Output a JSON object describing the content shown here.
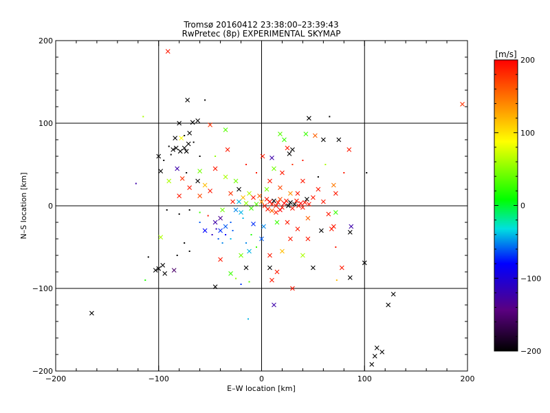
{
  "chart_data": {
    "type": "scatter",
    "title": "Tromsø 20160412 23:38:00–23:39:43",
    "subtitle": "RwPretec (8p) EXPERIMENTAL SKYMAP",
    "xlabel": "E–W location [km]",
    "ylabel": "N–S location [km]",
    "xlim": [
      -200,
      200
    ],
    "ylim": [
      -200,
      200
    ],
    "xticks": [
      "−200",
      "−100",
      "0",
      "100",
      "200"
    ],
    "yticks": [
      "200",
      "100",
      "0",
      "−100",
      "−200"
    ],
    "grid_lines_x": [
      -100,
      0,
      100
    ],
    "grid_lines_y": [
      -100,
      0,
      100
    ],
    "colorbar": {
      "label": "[m/s]",
      "range": [
        -200,
        200
      ],
      "ticks": [
        "200",
        "100",
        "0",
        "−100",
        "−200"
      ]
    },
    "marker_key": [
      "x = large marker",
      "dot = small marker"
    ],
    "points": [
      {
        "x": -91,
        "y": 187,
        "v": 190,
        "m": "x"
      },
      {
        "x": 195,
        "y": 123,
        "v": 180,
        "m": "x"
      },
      {
        "x": -72,
        "y": 128,
        "v": -200,
        "m": "x"
      },
      {
        "x": -62,
        "y": 103,
        "v": -200,
        "m": "x"
      },
      {
        "x": -67,
        "y": 101,
        "v": -200,
        "m": "x"
      },
      {
        "x": -50,
        "y": 98,
        "v": 180,
        "m": "x"
      },
      {
        "x": -115,
        "y": 108,
        "v": 60,
        "m": "d"
      },
      {
        "x": -80,
        "y": 100,
        "v": -200,
        "m": "x"
      },
      {
        "x": -78,
        "y": 82,
        "v": 90,
        "m": "x"
      },
      {
        "x": -75,
        "y": 85,
        "v": -200,
        "m": "d"
      },
      {
        "x": -70,
        "y": 88,
        "v": -200,
        "m": "x"
      },
      {
        "x": -83,
        "y": 70,
        "v": -200,
        "m": "x"
      },
      {
        "x": -79,
        "y": 66,
        "v": -200,
        "m": "x"
      },
      {
        "x": -75,
        "y": 70,
        "v": -200,
        "m": "x"
      },
      {
        "x": -73,
        "y": 66,
        "v": -200,
        "m": "x"
      },
      {
        "x": -71,
        "y": 75,
        "v": -200,
        "m": "x"
      },
      {
        "x": -86,
        "y": 68,
        "v": -200,
        "m": "x"
      },
      {
        "x": -88,
        "y": 62,
        "v": -200,
        "m": "d"
      },
      {
        "x": -84,
        "y": 82,
        "v": -200,
        "m": "x"
      },
      {
        "x": -90,
        "y": 72,
        "v": -200,
        "m": "d"
      },
      {
        "x": -66,
        "y": 77,
        "v": -200,
        "m": "d"
      },
      {
        "x": -100,
        "y": 60,
        "v": -200,
        "m": "x"
      },
      {
        "x": -98,
        "y": 42,
        "v": -200,
        "m": "x"
      },
      {
        "x": -95,
        "y": 55,
        "v": -200,
        "m": "d"
      },
      {
        "x": -82,
        "y": 45,
        "v": -120,
        "m": "x"
      },
      {
        "x": -73,
        "y": 40,
        "v": -200,
        "m": "d"
      },
      {
        "x": -60,
        "y": 42,
        "v": 40,
        "m": "x"
      },
      {
        "x": -62,
        "y": 30,
        "v": -200,
        "m": "x"
      },
      {
        "x": -55,
        "y": 25,
        "v": 120,
        "m": "x"
      },
      {
        "x": -90,
        "y": 30,
        "v": 60,
        "m": "x"
      },
      {
        "x": -77,
        "y": 33,
        "v": 180,
        "m": "x"
      },
      {
        "x": -70,
        "y": 22,
        "v": 190,
        "m": "x"
      },
      {
        "x": -80,
        "y": 12,
        "v": 190,
        "m": "x"
      },
      {
        "x": -60,
        "y": 12,
        "v": 170,
        "m": "x"
      },
      {
        "x": -50,
        "y": 18,
        "v": 190,
        "m": "x"
      },
      {
        "x": -45,
        "y": 45,
        "v": 190,
        "m": "x"
      },
      {
        "x": -35,
        "y": 92,
        "v": 30,
        "m": "x"
      },
      {
        "x": -33,
        "y": 68,
        "v": 190,
        "m": "x"
      },
      {
        "x": -35,
        "y": 35,
        "v": 60,
        "m": "x"
      },
      {
        "x": -25,
        "y": 30,
        "v": 40,
        "m": "x"
      },
      {
        "x": -22,
        "y": 20,
        "v": -200,
        "m": "x"
      },
      {
        "x": -18,
        "y": 10,
        "v": 120,
        "m": "x"
      },
      {
        "x": -12,
        "y": 15,
        "v": 60,
        "m": "x"
      },
      {
        "x": -8,
        "y": 10,
        "v": 190,
        "m": "x"
      },
      {
        "x": -28,
        "y": 5,
        "v": 190,
        "m": "x"
      },
      {
        "x": -22,
        "y": 5,
        "v": -40,
        "m": "x"
      },
      {
        "x": -15,
        "y": 3,
        "v": 50,
        "m": "x"
      },
      {
        "x": 1,
        "y": 60,
        "v": 190,
        "m": "x"
      },
      {
        "x": 10,
        "y": 58,
        "v": -120,
        "m": "x"
      },
      {
        "x": 18,
        "y": 87,
        "v": 30,
        "m": "x"
      },
      {
        "x": 22,
        "y": 80,
        "v": 20,
        "m": "x"
      },
      {
        "x": 25,
        "y": 70,
        "v": 190,
        "m": "x"
      },
      {
        "x": 27,
        "y": 63,
        "v": -200,
        "m": "x"
      },
      {
        "x": 30,
        "y": 68,
        "v": -200,
        "m": "x"
      },
      {
        "x": 43,
        "y": 87,
        "v": 20,
        "m": "x"
      },
      {
        "x": 46,
        "y": 106,
        "v": -200,
        "m": "x"
      },
      {
        "x": 60,
        "y": 80,
        "v": -200,
        "m": "x"
      },
      {
        "x": 66,
        "y": 108,
        "v": -200,
        "m": "d"
      },
      {
        "x": 75,
        "y": 80,
        "v": -200,
        "m": "x"
      },
      {
        "x": 85,
        "y": 68,
        "v": 190,
        "m": "x"
      },
      {
        "x": 102,
        "y": 40,
        "v": -200,
        "m": "d"
      },
      {
        "x": 52,
        "y": 85,
        "v": 160,
        "m": "x"
      },
      {
        "x": 12,
        "y": 45,
        "v": 40,
        "m": "x"
      },
      {
        "x": 8,
        "y": 30,
        "v": 190,
        "m": "x"
      },
      {
        "x": 20,
        "y": 40,
        "v": 190,
        "m": "x"
      },
      {
        "x": 40,
        "y": 30,
        "v": 190,
        "m": "x"
      },
      {
        "x": 55,
        "y": 20,
        "v": 190,
        "m": "x"
      },
      {
        "x": 70,
        "y": 25,
        "v": 150,
        "m": "x"
      },
      {
        "x": 5,
        "y": 8,
        "v": 190,
        "m": "x"
      },
      {
        "x": 8,
        "y": 5,
        "v": 200,
        "m": "x"
      },
      {
        "x": 10,
        "y": 2,
        "v": 190,
        "m": "x"
      },
      {
        "x": 12,
        "y": 6,
        "v": -200,
        "m": "x"
      },
      {
        "x": 14,
        "y": 0,
        "v": 190,
        "m": "x"
      },
      {
        "x": 16,
        "y": 4,
        "v": 190,
        "m": "x"
      },
      {
        "x": 18,
        "y": 8,
        "v": 170,
        "m": "x"
      },
      {
        "x": 20,
        "y": -2,
        "v": 190,
        "m": "x"
      },
      {
        "x": 22,
        "y": 3,
        "v": 200,
        "m": "x"
      },
      {
        "x": 24,
        "y": 6,
        "v": 190,
        "m": "x"
      },
      {
        "x": 26,
        "y": 0,
        "v": -200,
        "m": "x"
      },
      {
        "x": 28,
        "y": 4,
        "v": -200,
        "m": "x"
      },
      {
        "x": 30,
        "y": -3,
        "v": 190,
        "m": "x"
      },
      {
        "x": 32,
        "y": 2,
        "v": -200,
        "m": "x"
      },
      {
        "x": 34,
        "y": 6,
        "v": 190,
        "m": "x"
      },
      {
        "x": 36,
        "y": 0,
        "v": 190,
        "m": "x"
      },
      {
        "x": 38,
        "y": 3,
        "v": 200,
        "m": "x"
      },
      {
        "x": 40,
        "y": -2,
        "v": 190,
        "m": "x"
      },
      {
        "x": 42,
        "y": 4,
        "v": 190,
        "m": "x"
      },
      {
        "x": 44,
        "y": 8,
        "v": -200,
        "m": "x"
      },
      {
        "x": 46,
        "y": 2,
        "v": 190,
        "m": "x"
      },
      {
        "x": 6,
        "y": -4,
        "v": 190,
        "m": "x"
      },
      {
        "x": 10,
        "y": -6,
        "v": 160,
        "m": "x"
      },
      {
        "x": 14,
        "y": -8,
        "v": 190,
        "m": "x"
      },
      {
        "x": 18,
        "y": -5,
        "v": 200,
        "m": "x"
      },
      {
        "x": 3,
        "y": 0,
        "v": 190,
        "m": "x"
      },
      {
        "x": 0,
        "y": 5,
        "v": 140,
        "m": "x"
      },
      {
        "x": -5,
        "y": 2,
        "v": 30,
        "m": "x"
      },
      {
        "x": -10,
        "y": -3,
        "v": 20,
        "m": "x"
      },
      {
        "x": -20,
        "y": -8,
        "v": -40,
        "m": "x"
      },
      {
        "x": -25,
        "y": -5,
        "v": -50,
        "m": "x"
      },
      {
        "x": -18,
        "y": -15,
        "v": -40,
        "m": "d"
      },
      {
        "x": -30,
        "y": -20,
        "v": -60,
        "m": "d"
      },
      {
        "x": -35,
        "y": -25,
        "v": -60,
        "m": "x"
      },
      {
        "x": -40,
        "y": -30,
        "v": -70,
        "m": "x"
      },
      {
        "x": -45,
        "y": -20,
        "v": -120,
        "m": "x"
      },
      {
        "x": -48,
        "y": -35,
        "v": -110,
        "m": "d"
      },
      {
        "x": -42,
        "y": -40,
        "v": -60,
        "m": "d"
      },
      {
        "x": -38,
        "y": -45,
        "v": -50,
        "m": "d"
      },
      {
        "x": -30,
        "y": -40,
        "v": -40,
        "m": "d"
      },
      {
        "x": -28,
        "y": -30,
        "v": -60,
        "m": "d"
      },
      {
        "x": -35,
        "y": -35,
        "v": -80,
        "m": "d"
      },
      {
        "x": -44,
        "y": -28,
        "v": -110,
        "m": "d"
      },
      {
        "x": -40,
        "y": -15,
        "v": -130,
        "m": "x"
      },
      {
        "x": -55,
        "y": -30,
        "v": -80,
        "m": "x"
      },
      {
        "x": -60,
        "y": -20,
        "v": -60,
        "m": "d"
      },
      {
        "x": -15,
        "y": -45,
        "v": -50,
        "m": "d"
      },
      {
        "x": -10,
        "y": -35,
        "v": 10,
        "m": "d"
      },
      {
        "x": -5,
        "y": -50,
        "v": 20,
        "m": "d"
      },
      {
        "x": 0,
        "y": -40,
        "v": -60,
        "m": "x"
      },
      {
        "x": -20,
        "y": -60,
        "v": 40,
        "m": "x"
      },
      {
        "x": -12,
        "y": -55,
        "v": -40,
        "m": "x"
      },
      {
        "x": -15,
        "y": -75,
        "v": -200,
        "m": "x"
      },
      {
        "x": -30,
        "y": -82,
        "v": 20,
        "m": "x"
      },
      {
        "x": -45,
        "y": -98,
        "v": -200,
        "m": "x"
      },
      {
        "x": -40,
        "y": -65,
        "v": 190,
        "m": "x"
      },
      {
        "x": -20,
        "y": -95,
        "v": -70,
        "m": "d"
      },
      {
        "x": -12,
        "y": -92,
        "v": 30,
        "m": "d"
      },
      {
        "x": -25,
        "y": -88,
        "v": 50,
        "m": "d"
      },
      {
        "x": -13,
        "y": -137,
        "v": -40,
        "m": "d"
      },
      {
        "x": 12,
        "y": -120,
        "v": -120,
        "m": "x"
      },
      {
        "x": 10,
        "y": -90,
        "v": 190,
        "m": "x"
      },
      {
        "x": 15,
        "y": -80,
        "v": 190,
        "m": "x"
      },
      {
        "x": 30,
        "y": -100,
        "v": 190,
        "m": "x"
      },
      {
        "x": 8,
        "y": -75,
        "v": -200,
        "m": "x"
      },
      {
        "x": 8,
        "y": -60,
        "v": 190,
        "m": "x"
      },
      {
        "x": 20,
        "y": -55,
        "v": 120,
        "m": "x"
      },
      {
        "x": 28,
        "y": -40,
        "v": 190,
        "m": "x"
      },
      {
        "x": 35,
        "y": -28,
        "v": 190,
        "m": "x"
      },
      {
        "x": 40,
        "y": -60,
        "v": 60,
        "m": "x"
      },
      {
        "x": 45,
        "y": -40,
        "v": 190,
        "m": "x"
      },
      {
        "x": 50,
        "y": -75,
        "v": -200,
        "m": "x"
      },
      {
        "x": 58,
        "y": -30,
        "v": -200,
        "m": "x"
      },
      {
        "x": 68,
        "y": -28,
        "v": 190,
        "m": "x"
      },
      {
        "x": 70,
        "y": -25,
        "v": 190,
        "m": "x"
      },
      {
        "x": 72,
        "y": -50,
        "v": 190,
        "m": "d"
      },
      {
        "x": 78,
        "y": -75,
        "v": 190,
        "m": "x"
      },
      {
        "x": 86,
        "y": -32,
        "v": -200,
        "m": "x"
      },
      {
        "x": 86,
        "y": -87,
        "v": -200,
        "m": "x"
      },
      {
        "x": 87,
        "y": -25,
        "v": -120,
        "m": "x"
      },
      {
        "x": 100,
        "y": -69,
        "v": -200,
        "m": "x"
      },
      {
        "x": 73,
        "y": -90,
        "v": 120,
        "m": "d"
      },
      {
        "x": 50,
        "y": 10,
        "v": 190,
        "m": "x"
      },
      {
        "x": 60,
        "y": 5,
        "v": 190,
        "m": "x"
      },
      {
        "x": 65,
        "y": -10,
        "v": 190,
        "m": "x"
      },
      {
        "x": 72,
        "y": -8,
        "v": 20,
        "m": "x"
      },
      {
        "x": 72,
        "y": 15,
        "v": 190,
        "m": "x"
      },
      {
        "x": 45,
        "y": -15,
        "v": 160,
        "m": "x"
      },
      {
        "x": -100,
        "y": -76,
        "v": -200,
        "m": "x"
      },
      {
        "x": -96,
        "y": -72,
        "v": -200,
        "m": "x"
      },
      {
        "x": -94,
        "y": -82,
        "v": -200,
        "m": "x"
      },
      {
        "x": -103,
        "y": -78,
        "v": -200,
        "m": "x"
      },
      {
        "x": -85,
        "y": -78,
        "v": -150,
        "m": "x"
      },
      {
        "x": -110,
        "y": -62,
        "v": -200,
        "m": "d"
      },
      {
        "x": -113,
        "y": -90,
        "v": 10,
        "m": "d"
      },
      {
        "x": -98,
        "y": -38,
        "v": 60,
        "m": "x"
      },
      {
        "x": -75,
        "y": -45,
        "v": -200,
        "m": "d"
      },
      {
        "x": -82,
        "y": -60,
        "v": -200,
        "m": "d"
      },
      {
        "x": -70,
        "y": -55,
        "v": -200,
        "m": "d"
      },
      {
        "x": -80,
        "y": -10,
        "v": -200,
        "m": "d"
      },
      {
        "x": -70,
        "y": -5,
        "v": -200,
        "m": "d"
      },
      {
        "x": -92,
        "y": -5,
        "v": -200,
        "m": "d"
      },
      {
        "x": -165,
        "y": -130,
        "v": -200,
        "m": "x"
      },
      {
        "x": -122,
        "y": 27,
        "v": -120,
        "m": "d"
      },
      {
        "x": 107,
        "y": -192,
        "v": -200,
        "m": "x"
      },
      {
        "x": 110,
        "y": -182,
        "v": -200,
        "m": "x"
      },
      {
        "x": 112,
        "y": -172,
        "v": -200,
        "m": "x"
      },
      {
        "x": 117,
        "y": -177,
        "v": -200,
        "m": "x"
      },
      {
        "x": 123,
        "y": -120,
        "v": -200,
        "m": "x"
      },
      {
        "x": 128,
        "y": -107,
        "v": -200,
        "m": "x"
      },
      {
        "x": -55,
        "y": 128,
        "v": -200,
        "m": "d"
      },
      {
        "x": -60,
        "y": 60,
        "v": -200,
        "m": "d"
      },
      {
        "x": 2,
        "y": -25,
        "v": -50,
        "m": "x"
      },
      {
        "x": -8,
        "y": -22,
        "v": -70,
        "m": "x"
      },
      {
        "x": 15,
        "y": -20,
        "v": 20,
        "m": "x"
      },
      {
        "x": 25,
        "y": -20,
        "v": 190,
        "m": "x"
      },
      {
        "x": 5,
        "y": 20,
        "v": 40,
        "m": "x"
      },
      {
        "x": 18,
        "y": 22,
        "v": 170,
        "m": "x"
      },
      {
        "x": 35,
        "y": 15,
        "v": 190,
        "m": "x"
      },
      {
        "x": 28,
        "y": 15,
        "v": 140,
        "m": "x"
      },
      {
        "x": -2,
        "y": 12,
        "v": 160,
        "m": "x"
      },
      {
        "x": -30,
        "y": 15,
        "v": 180,
        "m": "x"
      },
      {
        "x": -38,
        "y": -5,
        "v": 40,
        "m": "x"
      },
      {
        "x": -60,
        "y": -8,
        "v": 20,
        "m": "d"
      },
      {
        "x": -52,
        "y": -12,
        "v": 190,
        "m": "d"
      },
      {
        "x": 55,
        "y": 35,
        "v": -200,
        "m": "d"
      },
      {
        "x": 62,
        "y": 50,
        "v": 60,
        "m": "d"
      },
      {
        "x": 80,
        "y": 40,
        "v": 190,
        "m": "d"
      },
      {
        "x": 30,
        "y": 50,
        "v": 180,
        "m": "d"
      },
      {
        "x": 40,
        "y": 55,
        "v": 190,
        "m": "d"
      },
      {
        "x": -5,
        "y": 40,
        "v": 190,
        "m": "d"
      },
      {
        "x": -15,
        "y": 50,
        "v": 190,
        "m": "d"
      },
      {
        "x": -45,
        "y": 60,
        "v": 50,
        "m": "d"
      }
    ]
  }
}
